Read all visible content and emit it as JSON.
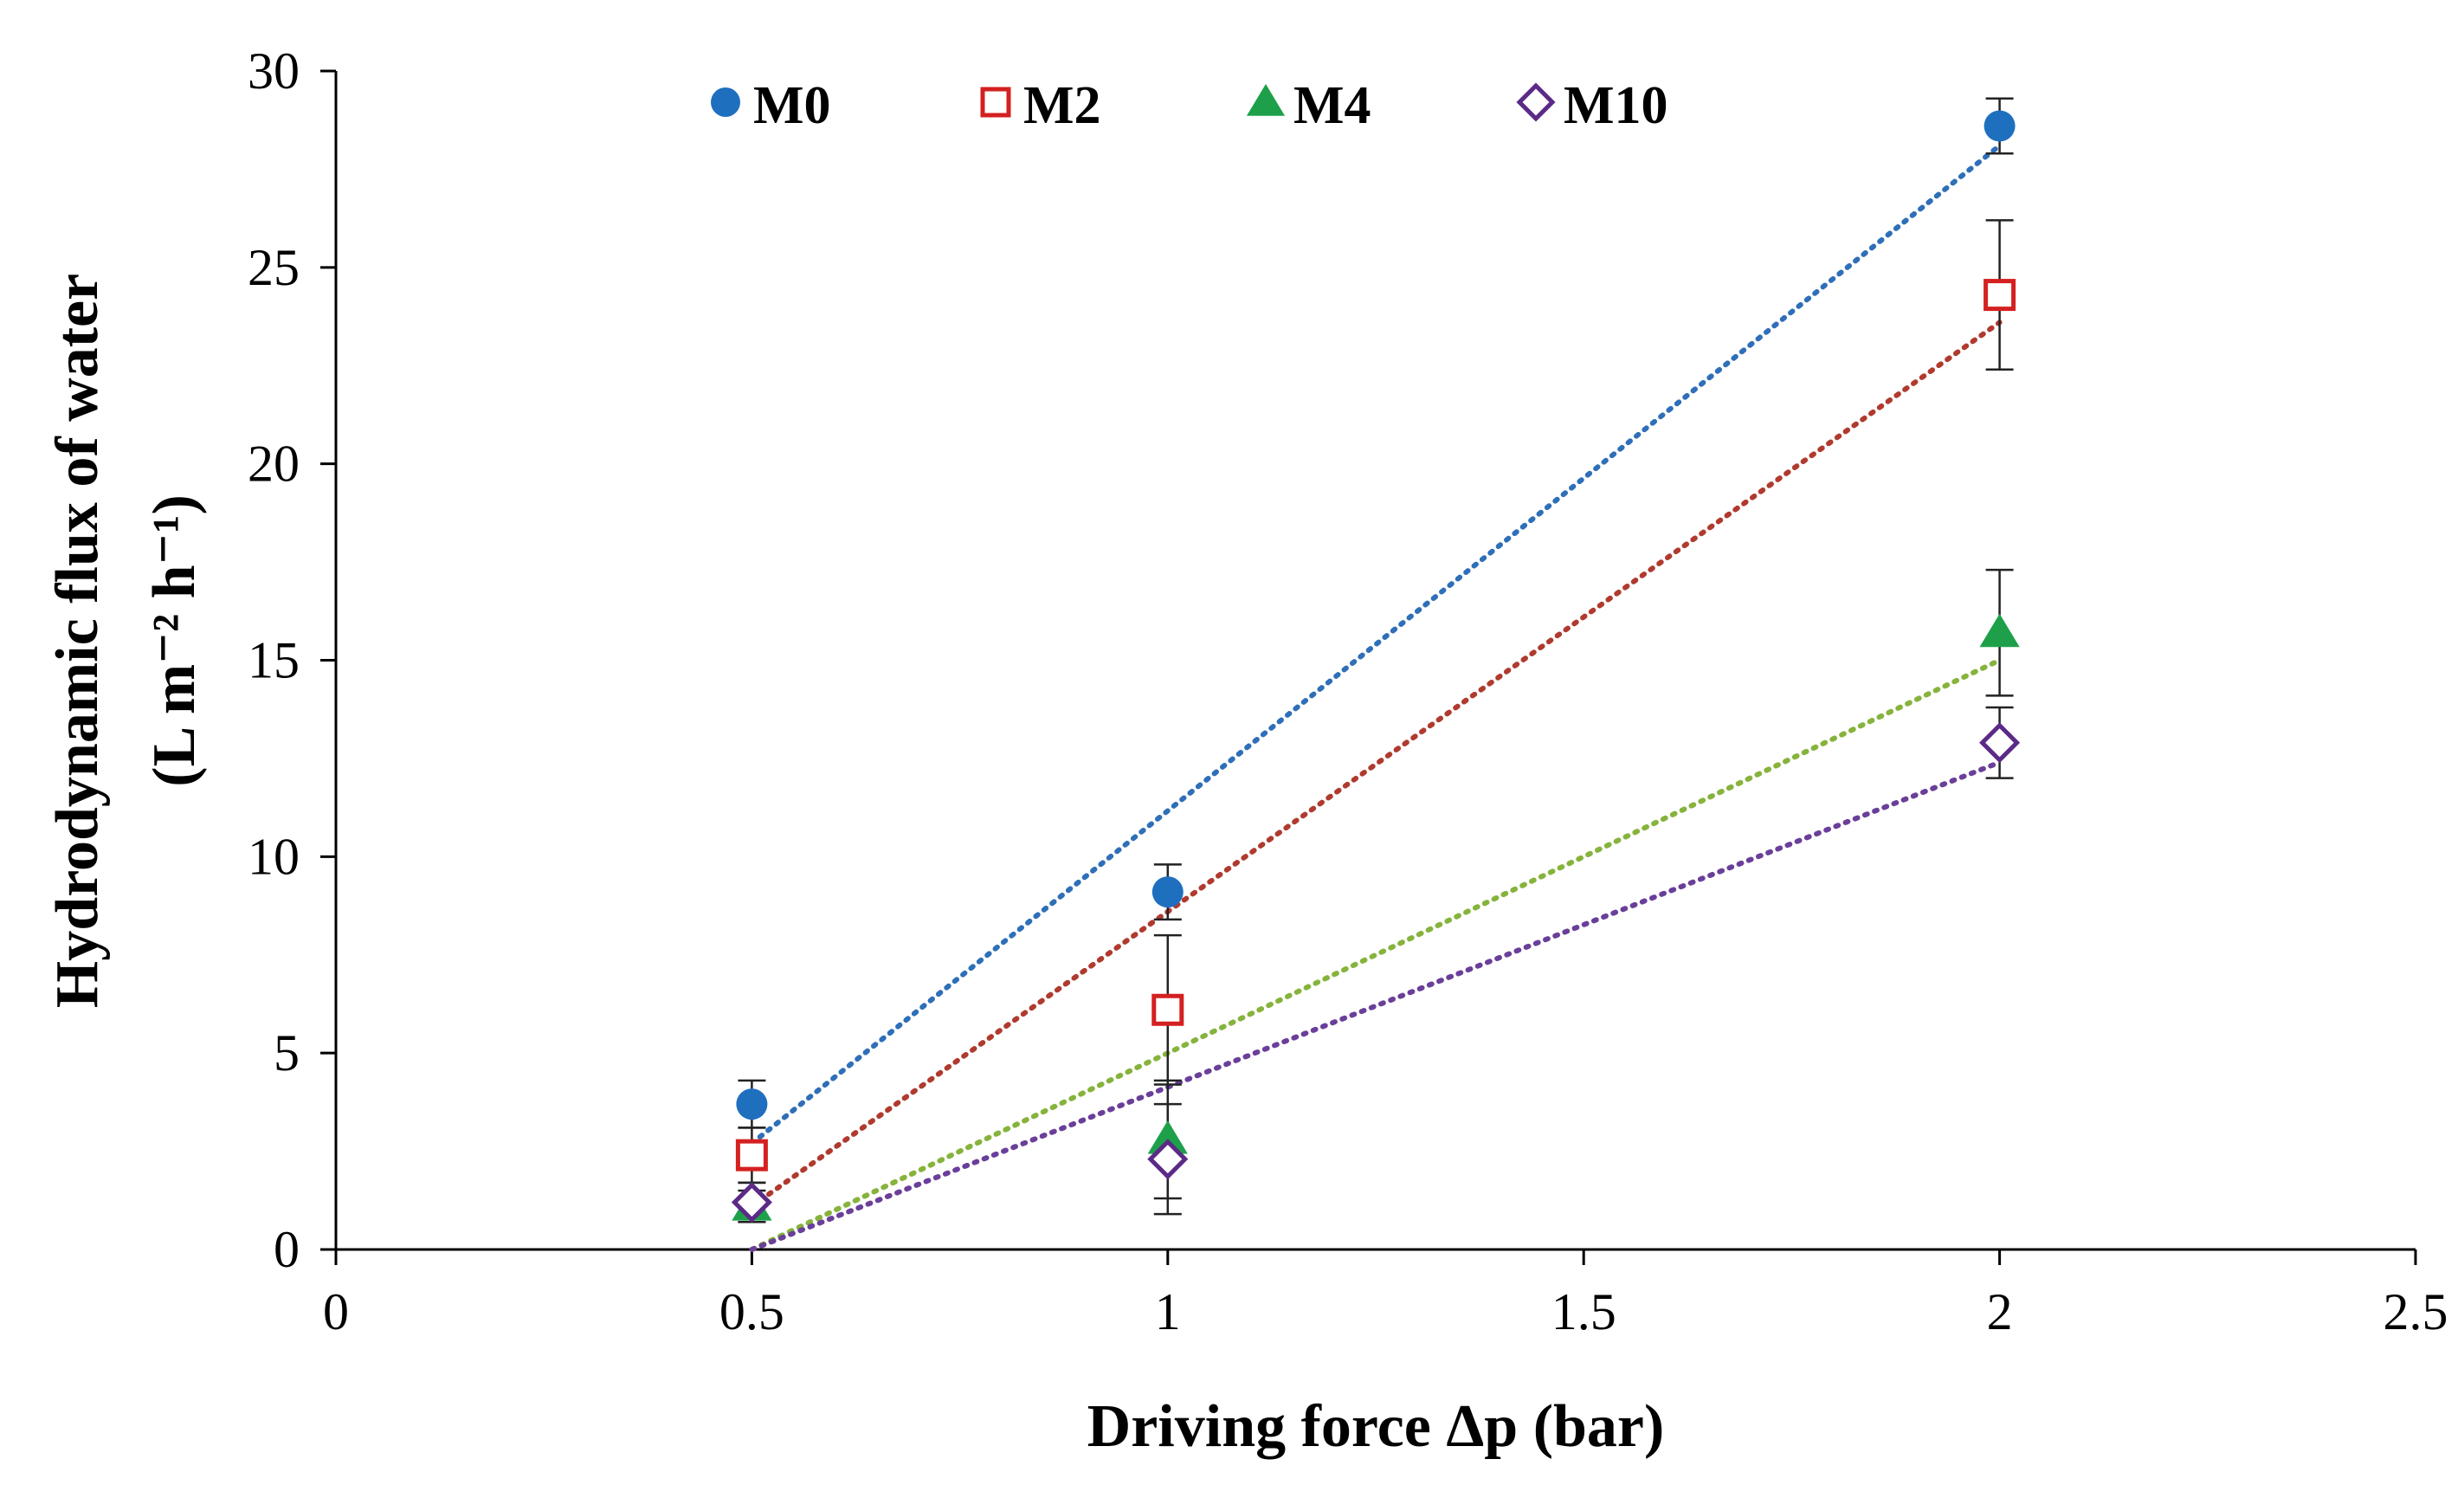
{
  "chart_data": {
    "type": "scatter",
    "title": "",
    "xlabel": "Driving force Δp (bar)",
    "ylabel_line1": "Hydrodynamic flux of water",
    "ylabel_line2": "(L m⁻² h⁻¹)",
    "xlim": [
      0,
      2.5
    ],
    "ylim": [
      0,
      30
    ],
    "x_ticks": [
      0,
      0.5,
      1,
      1.5,
      2,
      2.5
    ],
    "x_tick_labels": [
      "0",
      "0.5",
      "1",
      "1.5",
      "2",
      "2.5"
    ],
    "y_ticks": [
      0,
      5,
      10,
      15,
      20,
      25,
      30
    ],
    "y_tick_labels": [
      "0",
      "5",
      "10",
      "15",
      "20",
      "25",
      "30"
    ],
    "grid": false,
    "legend_position": "top",
    "series": [
      {
        "name": "M0",
        "marker": "circle",
        "color": "#1f6fbf",
        "filled": true,
        "trend_color": "#2e6fb8",
        "x": [
          0.5,
          1,
          2
        ],
        "y": [
          3.7,
          9.1,
          28.6
        ],
        "error": [
          0.6,
          0.7,
          0.7
        ],
        "trendline": [
          [
            0.5,
            2.7
          ],
          [
            2.0,
            28.1
          ]
        ]
      },
      {
        "name": "M2",
        "marker": "square",
        "color": "#d42020",
        "filled": false,
        "trend_color": "#b03a2e",
        "x": [
          0.5,
          1,
          2
        ],
        "y": [
          2.4,
          6.1,
          24.3
        ],
        "error": [
          0.7,
          1.9,
          1.9
        ],
        "trendline": [
          [
            0.5,
            1.1
          ],
          [
            2.0,
            23.6
          ]
        ]
      },
      {
        "name": "M4",
        "marker": "triangle",
        "color": "#1ea04a",
        "filled": true,
        "trend_color": "#86b33c",
        "x": [
          0.5,
          1,
          2
        ],
        "y": [
          1.1,
          2.8,
          15.7
        ],
        "error": [
          0.4,
          1.5,
          1.6
        ],
        "trendline": [
          [
            0.5,
            0.0
          ],
          [
            2.0,
            15.0
          ]
        ]
      },
      {
        "name": "M10",
        "marker": "diamond",
        "color": "#5b2a86",
        "filled": false,
        "trend_color": "#6a3f9a",
        "x": [
          0.5,
          1,
          2
        ],
        "y": [
          1.2,
          2.3,
          12.9
        ],
        "error": [
          0.5,
          1.4,
          0.9
        ],
        "trendline": [
          [
            0.5,
            0.0
          ],
          [
            2.0,
            12.4
          ]
        ]
      }
    ]
  }
}
